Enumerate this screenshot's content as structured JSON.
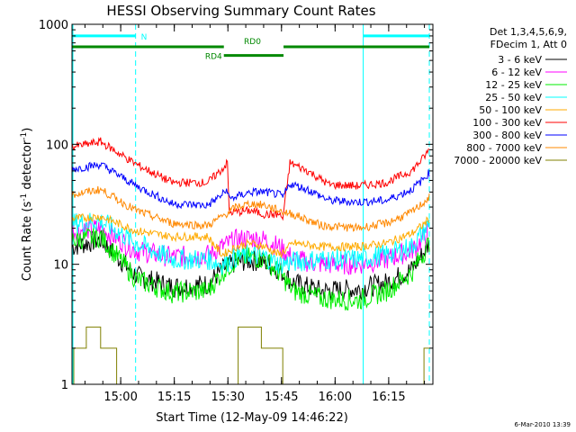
{
  "chart_data": {
    "type": "line",
    "title": "HESSI Observing Summary Count Rates",
    "xlabel": "Start Time (12-May-09 14:46:22)",
    "ylabel_main": "Count Rate (s",
    "ylabel_sup1": "-1",
    "ylabel_mid": " detector",
    "ylabel_sup2": "-1",
    "ylabel_end": ")",
    "yscale": "log",
    "ylim": [
      1,
      1000
    ],
    "xlim_minutes": [
      0,
      101
    ],
    "y_ticks": [
      {
        "value": 1,
        "label": "1"
      },
      {
        "value": 10,
        "label": "10"
      },
      {
        "value": 100,
        "label": "100"
      },
      {
        "value": 1000,
        "label": "1000"
      }
    ],
    "x_ticks": [
      {
        "minutes": 13.63,
        "label": "15:00"
      },
      {
        "minutes": 28.63,
        "label": "15:15"
      },
      {
        "minutes": 43.63,
        "label": "15:30"
      },
      {
        "minutes": 58.63,
        "label": "15:45"
      },
      {
        "minutes": 73.63,
        "label": "16:00"
      },
      {
        "minutes": 88.63,
        "label": "16:15"
      }
    ],
    "legend_header": [
      "Det 1,3,4,5,6,9,",
      "FDecim 1, Att 0"
    ],
    "series": [
      {
        "name": "3 - 6 keV",
        "color": "#000000",
        "points": [
          [
            0,
            14
          ],
          [
            8,
            16
          ],
          [
            18,
            8
          ],
          [
            28,
            6.5
          ],
          [
            38,
            6.8
          ],
          [
            42,
            9
          ],
          [
            46,
            10.5
          ],
          [
            50,
            10.8
          ],
          [
            54,
            10.5
          ],
          [
            58,
            9
          ],
          [
            62,
            7
          ],
          [
            70,
            6
          ],
          [
            80,
            6.2
          ],
          [
            88,
            7
          ],
          [
            95,
            9
          ],
          [
            98,
            12
          ],
          [
            100,
            15
          ]
        ]
      },
      {
        "name": "6 - 12 keV",
        "color": "#ff00ff",
        "points": [
          [
            0,
            19
          ],
          [
            8,
            20
          ],
          [
            18,
            13
          ],
          [
            28,
            11.5
          ],
          [
            38,
            12
          ],
          [
            42,
            14
          ],
          [
            46,
            16
          ],
          [
            50,
            16.5
          ],
          [
            54,
            16
          ],
          [
            58,
            14
          ],
          [
            62,
            11
          ],
          [
            70,
            10
          ],
          [
            80,
            10
          ],
          [
            88,
            11
          ],
          [
            95,
            13
          ],
          [
            98,
            16
          ],
          [
            100,
            19
          ]
        ]
      },
      {
        "name": "12 - 25 keV",
        "color": "#00ee00",
        "points": [
          [
            0,
            16
          ],
          [
            8,
            17
          ],
          [
            18,
            7.5
          ],
          [
            28,
            5.8
          ],
          [
            38,
            6
          ],
          [
            42,
            8.5
          ],
          [
            46,
            11
          ],
          [
            50,
            11.5
          ],
          [
            54,
            11
          ],
          [
            58,
            8.5
          ],
          [
            62,
            6
          ],
          [
            70,
            5.2
          ],
          [
            80,
            5
          ],
          [
            88,
            6
          ],
          [
            95,
            8.5
          ],
          [
            98,
            12
          ],
          [
            100,
            15
          ]
        ]
      },
      {
        "name": "25 - 50 keV",
        "color": "#00ffff",
        "points": [
          [
            0,
            22
          ],
          [
            8,
            23
          ],
          [
            18,
            15
          ],
          [
            28,
            11
          ],
          [
            38,
            11
          ],
          [
            42,
            10
          ],
          [
            46,
            11.5
          ],
          [
            50,
            12
          ],
          [
            54,
            11.5
          ],
          [
            58,
            10
          ],
          [
            62,
            10.5
          ],
          [
            70,
            11
          ],
          [
            80,
            11
          ],
          [
            88,
            12
          ],
          [
            95,
            14
          ],
          [
            98,
            18
          ],
          [
            100,
            22
          ]
        ]
      },
      {
        "name": "50 - 100 keV",
        "color": "#ffaa00",
        "points": [
          [
            0,
            24
          ],
          [
            8,
            25
          ],
          [
            18,
            19
          ],
          [
            28,
            17
          ],
          [
            38,
            17
          ],
          [
            42,
            12
          ],
          [
            46,
            14
          ],
          [
            50,
            15
          ],
          [
            54,
            14
          ],
          [
            58,
            12
          ],
          [
            62,
            15
          ],
          [
            70,
            14
          ],
          [
            80,
            14
          ],
          [
            88,
            15
          ],
          [
            95,
            18
          ],
          [
            98,
            21
          ],
          [
            100,
            24
          ]
        ]
      },
      {
        "name": "100 - 300 keV",
        "color": "#ff0000",
        "points": [
          [
            0,
            95
          ],
          [
            8,
            105
          ],
          [
            18,
            68
          ],
          [
            28,
            48
          ],
          [
            38,
            48
          ],
          [
            42,
            62
          ],
          [
            43.5,
            70
          ],
          [
            44,
            27
          ],
          [
            50,
            28
          ],
          [
            54,
            26
          ],
          [
            58,
            26
          ],
          [
            59,
            24
          ],
          [
            61,
            70
          ],
          [
            66,
            60
          ],
          [
            72,
            46
          ],
          [
            80,
            45
          ],
          [
            88,
            48
          ],
          [
            95,
            60
          ],
          [
            98,
            75
          ],
          [
            100,
            90
          ]
        ]
      },
      {
        "name": "300 - 800 keV",
        "color": "#0000ff",
        "points": [
          [
            0,
            62
          ],
          [
            8,
            68
          ],
          [
            18,
            45
          ],
          [
            28,
            32
          ],
          [
            38,
            31
          ],
          [
            42,
            38
          ],
          [
            43.5,
            42
          ],
          [
            44,
            35
          ],
          [
            50,
            40
          ],
          [
            54,
            40
          ],
          [
            58,
            38
          ],
          [
            59,
            36
          ],
          [
            61,
            47
          ],
          [
            66,
            42
          ],
          [
            72,
            34
          ],
          [
            80,
            33
          ],
          [
            88,
            34
          ],
          [
            95,
            42
          ],
          [
            98,
            50
          ],
          [
            100,
            58
          ]
        ]
      },
      {
        "name": "800 - 7000 keV",
        "color": "#ff8800",
        "points": [
          [
            0,
            38
          ],
          [
            8,
            42
          ],
          [
            18,
            28
          ],
          [
            28,
            22
          ],
          [
            38,
            21
          ],
          [
            42,
            25
          ],
          [
            46,
            30
          ],
          [
            50,
            32
          ],
          [
            54,
            31
          ],
          [
            58,
            28
          ],
          [
            62,
            26
          ],
          [
            70,
            21
          ],
          [
            80,
            20
          ],
          [
            88,
            22
          ],
          [
            95,
            27
          ],
          [
            98,
            32
          ],
          [
            100,
            36
          ]
        ]
      },
      {
        "name": "7000 - 20000 keV",
        "color": "#808000",
        "points": [
          [
            0,
            1
          ],
          [
            0.5,
            2
          ],
          [
            3,
            2
          ],
          [
            4,
            3
          ],
          [
            7,
            3
          ],
          [
            8,
            2
          ],
          [
            12,
            2
          ],
          [
            12.5,
            1
          ],
          [
            46,
            1
          ],
          [
            46.5,
            3
          ],
          [
            52,
            3
          ],
          [
            53,
            2
          ],
          [
            58,
            2
          ],
          [
            59,
            1
          ],
          [
            98,
            1
          ],
          [
            98.5,
            2
          ],
          [
            100,
            2
          ]
        ]
      }
    ],
    "state_bars": [
      {
        "label": "N",
        "color": "#00ffff",
        "segments": [
          [
            0,
            17.8
          ],
          [
            81.5,
            100
          ]
        ],
        "level": 800
      },
      {
        "label": "RD0",
        "color": "#008800",
        "segments": [
          [
            0,
            42.5
          ],
          [
            59.2,
            100
          ]
        ],
        "level": 650
      },
      {
        "label": "RD4",
        "color": "#008800",
        "segments": [
          [
            42.5,
            59.2
          ]
        ],
        "level": 550
      }
    ],
    "vlines_solid": [
      {
        "minutes": 81.5,
        "color": "#00ffff"
      }
    ],
    "vlines_dashed": [
      {
        "minutes": 17.8,
        "color": "#00ffff"
      },
      {
        "minutes": 100,
        "color": "#00ffff"
      }
    ],
    "vline_left": {
      "minutes": 0,
      "color": "#00ffff"
    }
  },
  "footer": {
    "date": "6-Mar-2010 13:39"
  }
}
